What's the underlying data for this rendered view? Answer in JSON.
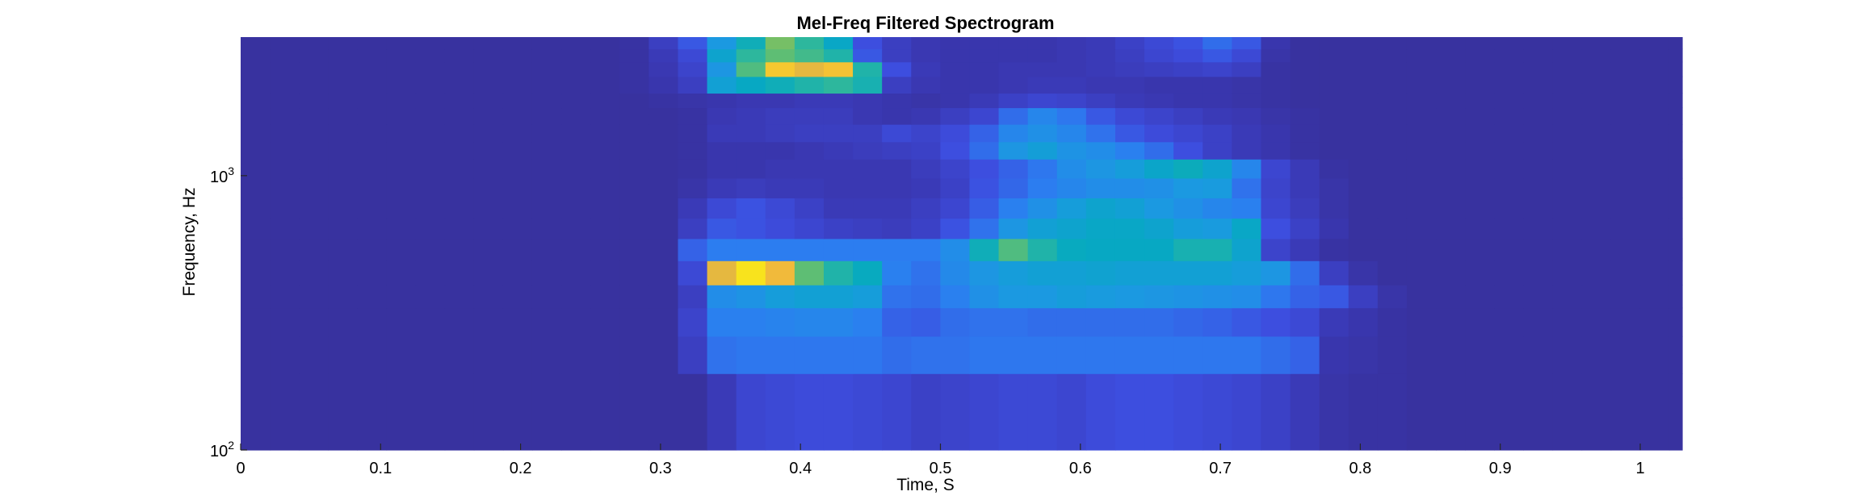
{
  "chart_data": {
    "type": "heatmap",
    "title": "Mel-Freq Filtered Spectrogram",
    "xlabel": "Time, S",
    "ylabel": "Frequency, Hz",
    "x_ticks": [
      "0",
      "0.1",
      "0.2",
      "0.3",
      "0.4",
      "0.5",
      "0.6",
      "0.7",
      "0.8",
      "0.9",
      "1"
    ],
    "x_tick_values": [
      0,
      0.1,
      0.2,
      0.3,
      0.4,
      0.5,
      0.6,
      0.7,
      0.8,
      0.9,
      1.0
    ],
    "xlim": [
      0,
      1.03
    ],
    "y_scale": "log",
    "y_ticks": [
      {
        "base": "10",
        "exp": "2",
        "value": 100
      },
      {
        "base": "10",
        "exp": "3",
        "value": 1000
      }
    ],
    "ylim": [
      100,
      3200
    ],
    "frame_step_s": 0.02083,
    "band_edges_hz": [
      100,
      190,
      260,
      330,
      400,
      490,
      590,
      700,
      830,
      980,
      1150,
      1330,
      1540,
      1770,
      2000,
      2300,
      2600,
      2900,
      3200
    ],
    "colormap": "parula",
    "colormap_stops": [
      "#352a87",
      "#3a38b2",
      "#3d4ee0",
      "#2b7ef0",
      "#1a9ae0",
      "#06a9c1",
      "#2ab7a0",
      "#6abf6a",
      "#b8bd4e",
      "#f0b73d",
      "#f8d02a",
      "#f9fb0e"
    ],
    "intensity": [
      [
        0.05,
        0.05,
        0.05,
        0.05,
        0.05,
        0.05,
        0.05,
        0.05,
        0.05,
        0.05,
        0.05,
        0.05,
        0.05,
        0.05,
        0.05,
        0.05,
        0.1,
        0.15,
        0.16,
        0.17,
        0.17,
        0.16,
        0.15,
        0.13,
        0.14,
        0.15,
        0.16,
        0.16,
        0.15,
        0.17,
        0.18,
        0.18,
        0.17,
        0.16,
        0.15,
        0.13,
        0.1,
        0.07,
        0.06,
        0.06,
        0.05,
        0.05,
        0.05,
        0.05,
        0.05,
        0.05,
        0.05,
        0.05,
        0.05,
        0.05
      ],
      [
        0.05,
        0.05,
        0.05,
        0.05,
        0.05,
        0.05,
        0.05,
        0.05,
        0.05,
        0.05,
        0.05,
        0.05,
        0.05,
        0.05,
        0.05,
        0.12,
        0.25,
        0.26,
        0.26,
        0.26,
        0.26,
        0.26,
        0.24,
        0.25,
        0.25,
        0.26,
        0.26,
        0.26,
        0.26,
        0.26,
        0.26,
        0.26,
        0.26,
        0.26,
        0.26,
        0.24,
        0.22,
        0.08,
        0.07,
        0.06,
        0.05,
        0.05,
        0.05,
        0.05,
        0.05,
        0.05,
        0.05,
        0.05,
        0.05,
        0.05
      ],
      [
        0.05,
        0.05,
        0.05,
        0.05,
        0.05,
        0.05,
        0.05,
        0.05,
        0.05,
        0.05,
        0.05,
        0.05,
        0.05,
        0.05,
        0.05,
        0.14,
        0.28,
        0.28,
        0.29,
        0.3,
        0.3,
        0.28,
        0.22,
        0.21,
        0.24,
        0.25,
        0.25,
        0.24,
        0.24,
        0.24,
        0.24,
        0.24,
        0.23,
        0.22,
        0.2,
        0.18,
        0.16,
        0.1,
        0.08,
        0.06,
        0.05,
        0.05,
        0.05,
        0.05,
        0.05,
        0.05,
        0.05,
        0.05,
        0.05,
        0.05
      ],
      [
        0.05,
        0.05,
        0.05,
        0.05,
        0.05,
        0.05,
        0.05,
        0.05,
        0.05,
        0.05,
        0.05,
        0.05,
        0.05,
        0.05,
        0.05,
        0.12,
        0.32,
        0.34,
        0.38,
        0.4,
        0.4,
        0.38,
        0.25,
        0.24,
        0.28,
        0.33,
        0.36,
        0.36,
        0.38,
        0.37,
        0.36,
        0.35,
        0.34,
        0.33,
        0.32,
        0.26,
        0.22,
        0.2,
        0.12,
        0.07,
        0.05,
        0.05,
        0.05,
        0.05,
        0.05,
        0.05,
        0.05,
        0.05,
        0.05,
        0.05
      ],
      [
        0.05,
        0.05,
        0.05,
        0.05,
        0.05,
        0.05,
        0.05,
        0.05,
        0.05,
        0.05,
        0.05,
        0.05,
        0.05,
        0.05,
        0.05,
        0.16,
        0.8,
        0.95,
        0.83,
        0.62,
        0.52,
        0.46,
        0.28,
        0.25,
        0.31,
        0.35,
        0.38,
        0.4,
        0.4,
        0.41,
        0.4,
        0.4,
        0.4,
        0.4,
        0.38,
        0.35,
        0.24,
        0.12,
        0.07,
        0.05,
        0.05,
        0.05,
        0.05,
        0.05,
        0.05,
        0.05,
        0.05,
        0.05,
        0.05,
        0.05
      ],
      [
        0.05,
        0.05,
        0.05,
        0.05,
        0.05,
        0.05,
        0.05,
        0.05,
        0.05,
        0.05,
        0.05,
        0.05,
        0.05,
        0.05,
        0.05,
        0.22,
        0.27,
        0.27,
        0.27,
        0.27,
        0.27,
        0.27,
        0.27,
        0.27,
        0.32,
        0.48,
        0.6,
        0.52,
        0.46,
        0.45,
        0.45,
        0.45,
        0.5,
        0.5,
        0.42,
        0.14,
        0.1,
        0.06,
        0.05,
        0.05,
        0.05,
        0.05,
        0.05,
        0.05,
        0.05,
        0.05,
        0.05,
        0.05,
        0.05,
        0.05
      ],
      [
        0.05,
        0.05,
        0.05,
        0.05,
        0.05,
        0.05,
        0.05,
        0.05,
        0.05,
        0.05,
        0.05,
        0.05,
        0.05,
        0.05,
        0.05,
        0.12,
        0.2,
        0.19,
        0.17,
        0.15,
        0.13,
        0.12,
        0.11,
        0.13,
        0.19,
        0.25,
        0.35,
        0.4,
        0.42,
        0.44,
        0.44,
        0.42,
        0.38,
        0.37,
        0.44,
        0.18,
        0.13,
        0.08,
        0.05,
        0.05,
        0.05,
        0.05,
        0.05,
        0.05,
        0.05,
        0.05,
        0.05,
        0.05,
        0.05,
        0.05
      ],
      [
        0.05,
        0.05,
        0.05,
        0.05,
        0.05,
        0.05,
        0.05,
        0.05,
        0.05,
        0.05,
        0.05,
        0.05,
        0.05,
        0.05,
        0.05,
        0.1,
        0.16,
        0.19,
        0.16,
        0.13,
        0.1,
        0.1,
        0.1,
        0.12,
        0.15,
        0.21,
        0.28,
        0.33,
        0.38,
        0.42,
        0.4,
        0.36,
        0.33,
        0.3,
        0.28,
        0.15,
        0.11,
        0.07,
        0.05,
        0.05,
        0.05,
        0.05,
        0.05,
        0.05,
        0.05,
        0.05,
        0.05,
        0.05,
        0.05,
        0.05
      ],
      [
        0.05,
        0.05,
        0.05,
        0.05,
        0.05,
        0.05,
        0.05,
        0.05,
        0.05,
        0.05,
        0.05,
        0.05,
        0.05,
        0.05,
        0.05,
        0.07,
        0.1,
        0.11,
        0.1,
        0.1,
        0.09,
        0.09,
        0.09,
        0.1,
        0.13,
        0.19,
        0.23,
        0.27,
        0.3,
        0.32,
        0.32,
        0.33,
        0.36,
        0.37,
        0.25,
        0.14,
        0.1,
        0.07,
        0.05,
        0.05,
        0.05,
        0.05,
        0.05,
        0.05,
        0.05,
        0.05,
        0.05,
        0.05,
        0.05,
        0.05
      ],
      [
        0.05,
        0.05,
        0.05,
        0.05,
        0.05,
        0.05,
        0.05,
        0.05,
        0.05,
        0.05,
        0.05,
        0.05,
        0.05,
        0.05,
        0.05,
        0.06,
        0.08,
        0.08,
        0.09,
        0.09,
        0.09,
        0.09,
        0.09,
        0.11,
        0.14,
        0.18,
        0.22,
        0.26,
        0.32,
        0.35,
        0.38,
        0.43,
        0.47,
        0.42,
        0.3,
        0.15,
        0.1,
        0.06,
        0.05,
        0.05,
        0.05,
        0.05,
        0.05,
        0.05,
        0.05,
        0.05,
        0.05,
        0.05,
        0.05,
        0.05
      ],
      [
        0.05,
        0.05,
        0.05,
        0.05,
        0.05,
        0.05,
        0.05,
        0.05,
        0.05,
        0.05,
        0.05,
        0.05,
        0.05,
        0.05,
        0.05,
        0.06,
        0.08,
        0.08,
        0.08,
        0.09,
        0.1,
        0.11,
        0.12,
        0.13,
        0.18,
        0.24,
        0.35,
        0.39,
        0.34,
        0.32,
        0.28,
        0.24,
        0.18,
        0.13,
        0.1,
        0.08,
        0.06,
        0.05,
        0.05,
        0.05,
        0.05,
        0.05,
        0.05,
        0.05,
        0.05,
        0.05,
        0.05,
        0.05,
        0.05,
        0.05
      ],
      [
        0.05,
        0.05,
        0.05,
        0.05,
        0.05,
        0.05,
        0.05,
        0.05,
        0.05,
        0.05,
        0.05,
        0.05,
        0.05,
        0.05,
        0.05,
        0.06,
        0.1,
        0.1,
        0.11,
        0.12,
        0.12,
        0.12,
        0.16,
        0.14,
        0.17,
        0.22,
        0.3,
        0.33,
        0.3,
        0.25,
        0.2,
        0.17,
        0.15,
        0.13,
        0.1,
        0.08,
        0.06,
        0.05,
        0.05,
        0.05,
        0.05,
        0.05,
        0.05,
        0.05,
        0.05,
        0.05,
        0.05,
        0.05,
        0.05,
        0.05
      ],
      [
        0.05,
        0.05,
        0.05,
        0.05,
        0.05,
        0.05,
        0.05,
        0.05,
        0.05,
        0.05,
        0.05,
        0.05,
        0.05,
        0.05,
        0.05,
        0.06,
        0.09,
        0.1,
        0.11,
        0.11,
        0.11,
        0.09,
        0.08,
        0.09,
        0.12,
        0.15,
        0.24,
        0.3,
        0.26,
        0.2,
        0.16,
        0.14,
        0.12,
        0.1,
        0.09,
        0.07,
        0.06,
        0.05,
        0.05,
        0.05,
        0.05,
        0.05,
        0.05,
        0.05,
        0.05,
        0.05,
        0.05,
        0.05,
        0.05,
        0.05
      ],
      [
        0.05,
        0.05,
        0.05,
        0.05,
        0.05,
        0.05,
        0.05,
        0.05,
        0.05,
        0.05,
        0.05,
        0.05,
        0.05,
        0.05,
        0.06,
        0.07,
        0.08,
        0.09,
        0.09,
        0.1,
        0.1,
        0.09,
        0.08,
        0.07,
        0.08,
        0.1,
        0.13,
        0.15,
        0.14,
        0.12,
        0.1,
        0.09,
        0.08,
        0.08,
        0.07,
        0.06,
        0.05,
        0.05,
        0.05,
        0.05,
        0.05,
        0.05,
        0.05,
        0.05,
        0.05,
        0.05,
        0.05,
        0.05,
        0.05,
        0.05
      ],
      [
        0.05,
        0.05,
        0.05,
        0.05,
        0.05,
        0.05,
        0.05,
        0.05,
        0.05,
        0.05,
        0.05,
        0.05,
        0.05,
        0.06,
        0.08,
        0.12,
        0.4,
        0.45,
        0.48,
        0.52,
        0.55,
        0.5,
        0.12,
        0.09,
        0.08,
        0.08,
        0.09,
        0.1,
        0.1,
        0.09,
        0.09,
        0.08,
        0.08,
        0.08,
        0.07,
        0.06,
        0.05,
        0.05,
        0.05,
        0.05,
        0.05,
        0.05,
        0.05,
        0.05,
        0.05,
        0.05,
        0.05,
        0.05,
        0.05,
        0.05
      ],
      [
        0.05,
        0.05,
        0.05,
        0.05,
        0.05,
        0.05,
        0.05,
        0.05,
        0.05,
        0.05,
        0.05,
        0.05,
        0.05,
        0.06,
        0.09,
        0.14,
        0.35,
        0.6,
        0.88,
        0.8,
        0.86,
        0.52,
        0.18,
        0.1,
        0.08,
        0.08,
        0.09,
        0.09,
        0.09,
        0.1,
        0.11,
        0.12,
        0.13,
        0.14,
        0.12,
        0.06,
        0.05,
        0.05,
        0.05,
        0.05,
        0.05,
        0.05,
        0.05,
        0.05,
        0.05,
        0.05,
        0.05,
        0.05,
        0.05,
        0.05
      ],
      [
        0.05,
        0.05,
        0.05,
        0.05,
        0.05,
        0.05,
        0.05,
        0.05,
        0.05,
        0.05,
        0.05,
        0.05,
        0.05,
        0.06,
        0.1,
        0.16,
        0.42,
        0.55,
        0.62,
        0.58,
        0.52,
        0.2,
        0.12,
        0.09,
        0.08,
        0.08,
        0.08,
        0.08,
        0.09,
        0.1,
        0.12,
        0.15,
        0.17,
        0.2,
        0.16,
        0.07,
        0.05,
        0.05,
        0.05,
        0.05,
        0.05,
        0.05,
        0.05,
        0.05,
        0.05,
        0.05,
        0.05,
        0.05,
        0.05,
        0.05
      ],
      [
        0.05,
        0.05,
        0.05,
        0.05,
        0.05,
        0.05,
        0.05,
        0.05,
        0.05,
        0.05,
        0.05,
        0.05,
        0.05,
        0.06,
        0.12,
        0.2,
        0.36,
        0.48,
        0.65,
        0.55,
        0.44,
        0.18,
        0.12,
        0.09,
        0.08,
        0.08,
        0.08,
        0.08,
        0.09,
        0.1,
        0.13,
        0.16,
        0.19,
        0.24,
        0.2,
        0.08,
        0.05,
        0.05,
        0.05,
        0.05,
        0.05,
        0.05,
        0.05,
        0.05,
        0.05,
        0.05,
        0.05,
        0.05,
        0.05,
        0.05
      ]
    ]
  }
}
